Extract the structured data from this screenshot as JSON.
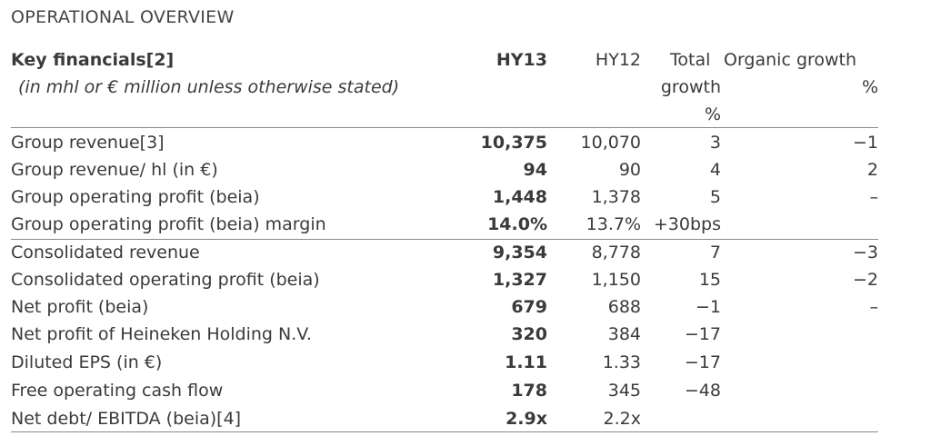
{
  "section_title": "OPERATIONAL OVERVIEW",
  "header": {
    "title": "Key financials[2]",
    "subtitle": "(in mhl or € million unless otherwise stated)",
    "col_hy13": "HY13",
    "col_hy12": "HY12",
    "col_total_1": "Total",
    "col_total_2": "growth",
    "col_total_3": "%",
    "col_organic_1": "Organic growth",
    "col_organic_2": "%"
  },
  "rows": [
    {
      "label": "Group revenue[3]",
      "hy13": "10,375",
      "hy12": "10,070",
      "total": "3",
      "organic": "−1"
    },
    {
      "label": "Group revenue/ hl (in €)",
      "hy13": "94",
      "hy12": "90",
      "total": "4",
      "organic": "2"
    },
    {
      "label": "Group operating profit (beia)",
      "hy13": "1,448",
      "hy12": "1,378",
      "total": "5",
      "organic": "–"
    },
    {
      "label": "Group operating profit (beia) margin",
      "hy13": "14.0%",
      "hy12": "13.7%",
      "total": "+30bps",
      "organic": ""
    },
    {
      "label": "Consolidated revenue",
      "hy13": "9,354",
      "hy12": "8,778",
      "total": "7",
      "organic": "−3"
    },
    {
      "label": "Consolidated operating profit (beia)",
      "hy13": "1,327",
      "hy12": "1,150",
      "total": "15",
      "organic": "−2"
    },
    {
      "label": "Net profit (beia)",
      "hy13": "679",
      "hy12": "688",
      "total": "−1",
      "organic": "–"
    },
    {
      "label": "Net profit of Heineken Holding N.V.",
      "hy13": "320",
      "hy12": "384",
      "total": "−17",
      "organic": ""
    },
    {
      "label": "Diluted EPS (in €)",
      "hy13": "1.11",
      "hy12": "1.33",
      "total": "−17",
      "organic": ""
    },
    {
      "label": "Free operating cash flow",
      "hy13": "178",
      "hy12": "345",
      "total": "−48",
      "organic": ""
    },
    {
      "label": "Net debt/ EBITDA (beia)[4]",
      "hy13": "2.9x",
      "hy12": "2.2x",
      "total": "",
      "organic": ""
    }
  ]
}
